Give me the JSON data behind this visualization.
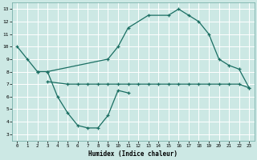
{
  "xlabel": "Humidex (Indice chaleur)",
  "bg_color": "#cce8e4",
  "grid_color": "#ffffff",
  "line_color": "#1a6e62",
  "xlim": [
    -0.5,
    23.5
  ],
  "ylim": [
    2.5,
    13.5
  ],
  "yticks": [
    3,
    4,
    5,
    6,
    7,
    8,
    9,
    10,
    11,
    12,
    13
  ],
  "xticks": [
    0,
    1,
    2,
    3,
    4,
    5,
    6,
    7,
    8,
    9,
    10,
    11,
    12,
    13,
    14,
    15,
    16,
    17,
    18,
    19,
    20,
    21,
    22,
    23
  ],
  "line_a_x": [
    0,
    1,
    2,
    3,
    9,
    10,
    11,
    13,
    15,
    16,
    17,
    18,
    19,
    20,
    21,
    22,
    23
  ],
  "line_a_y": [
    10,
    9,
    8,
    8,
    9.0,
    10.0,
    11.5,
    12.5,
    12.5,
    13.0,
    12.5,
    12.0,
    11.0,
    9.0,
    8.5,
    8.2,
    6.7
  ],
  "line_b_x": [
    3,
    5,
    6,
    7,
    8,
    9,
    10,
    11,
    12,
    13,
    14,
    15,
    16,
    17,
    18,
    19,
    20,
    21,
    22,
    23
  ],
  "line_b_y": [
    7.2,
    7.0,
    7.0,
    7.0,
    7.0,
    7.0,
    7.0,
    7.0,
    7.0,
    7.0,
    7.0,
    7.0,
    7.0,
    7.0,
    7.0,
    7.0,
    7.0,
    7.0,
    7.0,
    6.7
  ],
  "line_c_x": [
    2,
    3,
    4,
    5,
    6,
    7,
    8,
    9,
    10,
    11
  ],
  "line_c_y": [
    8.0,
    8.0,
    6.0,
    4.7,
    3.7,
    3.5,
    3.5,
    4.5,
    6.5,
    6.3
  ]
}
